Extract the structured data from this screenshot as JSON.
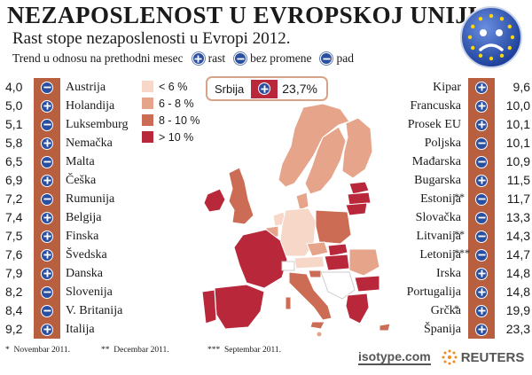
{
  "title": "NEZAPOSLENOST U EVROPSKOJ UNIJI",
  "subtitle": "Rast stope nezaposlenosti u Evropi 2012.",
  "trend": {
    "label": "Trend u odnosu na prethodni mesec",
    "items": [
      {
        "icon": "plus",
        "label": "rast"
      },
      {
        "icon": "minus",
        "label": "bez promene"
      },
      {
        "icon": "minus",
        "label": "pad"
      }
    ]
  },
  "colors": {
    "lt6": "#f6d7c8",
    "6to8": "#e6a48a",
    "8to10": "#cc6c54",
    "gt10": "#b8283a",
    "icon_blue": "#2a4fa0",
    "row_bg": "#b85f40"
  },
  "legend": [
    {
      "label": "< 6 %",
      "color": "#f6d7c8"
    },
    {
      "label": "6 - 8 %",
      "color": "#e6a48a"
    },
    {
      "label": "8 - 10 %",
      "color": "#cc6c54"
    },
    {
      "label": "> 10 %",
      "color": "#b8283a"
    }
  ],
  "serbia": {
    "name": "Srbija",
    "value": "23,7%",
    "icon": "plus"
  },
  "left_list": [
    {
      "value": "4,0",
      "icon": "minus",
      "name": "Austrija",
      "mark": ""
    },
    {
      "value": "5,0",
      "icon": "plus",
      "name": "Holandija",
      "mark": ""
    },
    {
      "value": "5,1",
      "icon": "minus",
      "name": "Luksemburg",
      "mark": ""
    },
    {
      "value": "5,8",
      "icon": "plus",
      "name": "Nemačka",
      "mark": ""
    },
    {
      "value": "6,5",
      "icon": "minus",
      "name": "Malta",
      "mark": ""
    },
    {
      "value": "6,9",
      "icon": "plus",
      "name": "Češka",
      "mark": ""
    },
    {
      "value": "7,2",
      "icon": "minus",
      "name": "Rumunija",
      "mark": ""
    },
    {
      "value": "7,4",
      "icon": "plus",
      "name": "Belgija",
      "mark": ""
    },
    {
      "value": "7,5",
      "icon": "plus",
      "name": "Finska",
      "mark": ""
    },
    {
      "value": "7,6",
      "icon": "plus",
      "name": "Švedska",
      "mark": ""
    },
    {
      "value": "7,9",
      "icon": "plus",
      "name": "Danska",
      "mark": ""
    },
    {
      "value": "8,2",
      "icon": "minus",
      "name": "Slovenija",
      "mark": ""
    },
    {
      "value": "8,4",
      "icon": "minus",
      "name": "V. Britanija",
      "mark": ""
    },
    {
      "value": "9,2",
      "icon": "plus",
      "name": "Italija",
      "mark": ""
    }
  ],
  "right_list": [
    {
      "value": "9,6",
      "icon": "plus",
      "name": "Kipar",
      "mark": ""
    },
    {
      "value": "10,0",
      "icon": "plus",
      "name": "Francuska",
      "mark": ""
    },
    {
      "value": "10,1",
      "icon": "plus",
      "name": "Prosek EU",
      "mark": ""
    },
    {
      "value": "10,1",
      "icon": "minus",
      "name": "Poljska",
      "mark": ""
    },
    {
      "value": "10,9",
      "icon": "minus",
      "name": "Mađarska",
      "mark": ""
    },
    {
      "value": "11,5",
      "icon": "plus",
      "name": "Bugarska",
      "mark": ""
    },
    {
      "value": "11,7",
      "icon": "minus",
      "name": "Estonija",
      "mark": "**"
    },
    {
      "value": "13,3",
      "icon": "minus",
      "name": "Slovačka",
      "mark": ""
    },
    {
      "value": "14,3",
      "icon": "minus",
      "name": "Litvanija",
      "mark": "**"
    },
    {
      "value": "14,7",
      "icon": "minus",
      "name": "Letonija",
      "mark": "***"
    },
    {
      "value": "14,8",
      "icon": "plus",
      "name": "Irska",
      "mark": ""
    },
    {
      "value": "14,8",
      "icon": "plus",
      "name": "Portugalija",
      "mark": ""
    },
    {
      "value": "19,9",
      "icon": "plus",
      "name": "Grčka",
      "mark": "*"
    },
    {
      "value": "23,3",
      "icon": "plus",
      "name": "Španija",
      "mark": ""
    }
  ],
  "footnotes": [
    {
      "mark": "*",
      "text": "Novembar 2011."
    },
    {
      "mark": "**",
      "text": "Decembar 2011."
    },
    {
      "mark": "***",
      "text": "Septembar 2011."
    }
  ],
  "logos": {
    "isotype": "isotype.com",
    "reuters": "REUTERS"
  }
}
